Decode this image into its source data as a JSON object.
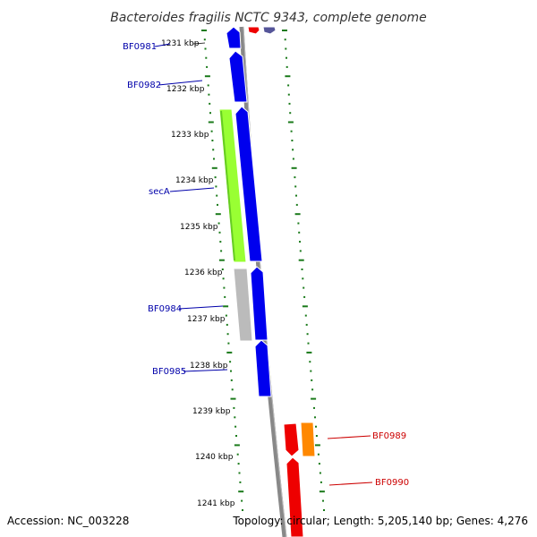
{
  "title": "Bacteroides fragilis NCTC 9343, complete genome",
  "footer": {
    "accession": "Accession: NC_003228",
    "topology": "Topology: circular; Length: 5,205,140 bp; Genes: 4,276"
  },
  "ticks": [
    "1231 kbp",
    "1232 kbp",
    "1233 kbp",
    "1234 kbp",
    "1235 kbp",
    "1236 kbp",
    "1237 kbp",
    "1238 kbp",
    "1239 kbp",
    "1240 kbp",
    "1241 kbp"
  ],
  "gene_labels": {
    "bf0981": "BF0981",
    "bf0982": "BF0982",
    "seca": "secA",
    "bf0984": "BF0984",
    "bf0985": "BF0985",
    "bf0989": "BF0989",
    "bf0990": "BF0990"
  },
  "colors": {
    "label_blue": "#0000aa",
    "label_red": "#cc0000",
    "gene_blue": "#0000ee",
    "gene_green": "#99ff33",
    "gene_gray": "#bbbbbb",
    "gene_red": "#ee0000",
    "gene_orange": "#ff8800",
    "gene_slate": "#555599",
    "backbone": "#888888",
    "ruler": "#1a7a1a"
  }
}
